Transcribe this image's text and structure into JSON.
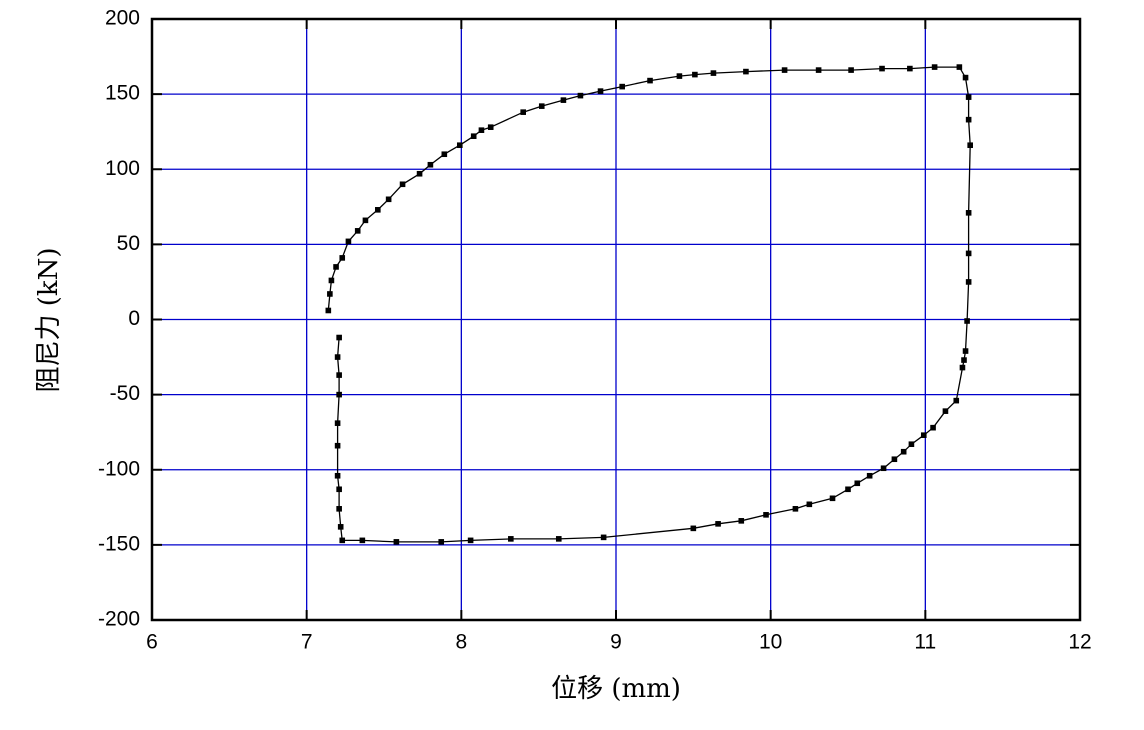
{
  "chart_data": {
    "type": "line",
    "x_label": "位移 (mm)",
    "y_label": "阻尼力 (kN)",
    "x": [
      7.14,
      7.15,
      7.16,
      7.19,
      7.23,
      7.27,
      7.33,
      7.38,
      7.46,
      7.53,
      7.62,
      7.73,
      7.8,
      7.89,
      7.99,
      8.08,
      8.13,
      8.19,
      8.4,
      8.52,
      8.66,
      8.77,
      8.9,
      9.04,
      9.22,
      9.41,
      9.51,
      9.63,
      9.84,
      10.09,
      10.31,
      10.52,
      10.72,
      10.9,
      11.06,
      11.22,
      11.26,
      11.28,
      11.28,
      11.29,
      11.28,
      11.28,
      11.28,
      11.27,
      11.26,
      11.25,
      11.24,
      11.2,
      11.13,
      11.05,
      10.99,
      10.91,
      10.86,
      10.8,
      10.73,
      10.64,
      10.56,
      10.5,
      10.4,
      10.25,
      10.16,
      9.97,
      9.81,
      9.66,
      9.5,
      8.92,
      8.63,
      8.32,
      8.06,
      7.87,
      7.58,
      7.36,
      7.23,
      7.22,
      7.21,
      7.21,
      7.2,
      7.2,
      7.2,
      7.21,
      7.21,
      7.2,
      7.21
    ],
    "values": [
      6,
      17,
      26,
      35,
      41,
      52,
      59,
      66,
      73,
      80,
      90,
      97,
      103,
      110,
      116,
      122,
      126,
      128,
      138,
      142,
      146,
      149,
      152,
      155,
      159,
      162,
      163,
      164,
      165,
      166,
      166,
      166,
      167,
      167,
      168,
      168,
      161,
      148,
      133,
      116,
      71,
      44,
      25,
      -1,
      -21,
      -27,
      -32,
      -54,
      -61,
      -72,
      -77,
      -83,
      -88,
      -93,
      -99,
      -104,
      -109,
      -113,
      -119,
      -123,
      -126,
      -130,
      -134,
      -136,
      -139,
      -145,
      -146,
      -146,
      -147,
      -148,
      -148,
      -147,
      -147,
      -138,
      -126,
      -113,
      -104,
      -84,
      -69,
      -50,
      -37,
      -25,
      -12
    ],
    "color": "#000000",
    "grid": true,
    "grid_color": "#0000cc",
    "xlim": [
      6,
      12
    ],
    "xticks": [
      6,
      7,
      8,
      9,
      10,
      11,
      12
    ],
    "ylim": [
      -200,
      200
    ],
    "yticks": [
      -200,
      -150,
      -100,
      -50,
      0,
      50,
      100,
      150,
      200
    ]
  }
}
